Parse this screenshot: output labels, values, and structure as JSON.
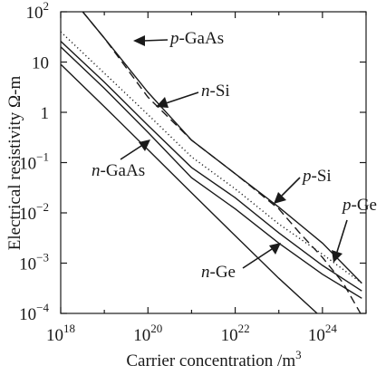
{
  "chart_data": {
    "type": "line",
    "xlabel": "Carrier concentration /m",
    "xlabel_sup": "3",
    "ylabel": "Electrical resistivity Ω-m",
    "x_scale": "log",
    "y_scale": "log",
    "xlim": [
      1e+18,
      1e+25
    ],
    "ylim": [
      0.0001,
      100
    ],
    "grid": false,
    "x_ticks": [
      {
        "value": 1e+18,
        "base": "10",
        "exp": "18"
      },
      {
        "value": 1e+20,
        "base": "10",
        "exp": "20"
      },
      {
        "value": 1e+22,
        "base": "10",
        "exp": "22"
      },
      {
        "value": 1e+24,
        "base": "10",
        "exp": "24"
      }
    ],
    "y_ticks": [
      {
        "value": 100,
        "base": "10",
        "exp": "2"
      },
      {
        "value": 10,
        "base": "10",
        "exp": ""
      },
      {
        "value": 1,
        "base": "1",
        "exp": ""
      },
      {
        "value": 0.1,
        "base": "10",
        "exp": "−1"
      },
      {
        "value": 0.01,
        "base": "10",
        "exp": "−2"
      },
      {
        "value": 0.001,
        "base": "10",
        "exp": "−3"
      },
      {
        "value": 0.0001,
        "base": "10",
        "exp": "−4"
      }
    ],
    "series": [
      {
        "style": "solid",
        "x": [
          1e+18,
          1e+19,
          1e+20,
          1e+21,
          1e+22,
          1e+23,
          1e+24,
          8e+24
        ],
        "y": [
          9,
          1.3,
          0.18,
          0.025,
          0.0035,
          0.0005,
          8e-05,
          1e-05
        ]
      },
      {
        "style": "solid",
        "x": [
          1e+18,
          1e+19,
          1e+20,
          1e+21,
          1e+22,
          1e+23,
          1e+24,
          8e+24
        ],
        "y": [
          20,
          3,
          0.4,
          0.05,
          0.012,
          0.0025,
          0.0006,
          0.0002
        ]
      },
      {
        "style": "solid",
        "x": [
          1e+18,
          1e+19,
          1e+20,
          1e+21,
          1e+22,
          1e+23,
          1e+24,
          8e+24
        ],
        "y": [
          26,
          4,
          0.55,
          0.08,
          0.02,
          0.004,
          0.0009,
          0.00028
        ]
      },
      {
        "style": "dotted",
        "x": [
          1e+18,
          1e+19,
          1e+20,
          1e+21,
          1e+22,
          1e+23,
          1e+24,
          8e+24
        ],
        "y": [
          40,
          6,
          0.9,
          0.13,
          0.03,
          0.006,
          0.0015,
          0.0004
        ]
      },
      {
        "style": "solid",
        "x": [
          3.2e+18,
          1e+19,
          1e+20,
          1e+21,
          1e+22,
          1e+23,
          1e+24,
          8e+24
        ],
        "y": [
          100,
          30,
          2.5,
          0.28,
          0.06,
          0.013,
          0.0025,
          0.0004
        ]
      },
      {
        "style": "dashed",
        "x": [
          3.2e+18,
          1e+19,
          1e+20,
          1e+21,
          1e+22,
          1e+23,
          3e+23,
          1e+24,
          3e+24,
          8e+24
        ],
        "y": [
          100,
          30,
          2.0,
          0.28,
          0.06,
          0.012,
          0.004,
          0.0013,
          0.0004,
          9e-05
        ]
      }
    ],
    "annotations": [
      {
        "prefix": "p",
        "rest": "-GaAs"
      },
      {
        "prefix": "n",
        "rest": "-Si"
      },
      {
        "prefix": "n",
        "rest": "-GaAs"
      },
      {
        "prefix": "p",
        "rest": "-Si"
      },
      {
        "prefix": "p",
        "rest": "-Ge"
      },
      {
        "prefix": "n",
        "rest": "-Ge"
      }
    ]
  }
}
